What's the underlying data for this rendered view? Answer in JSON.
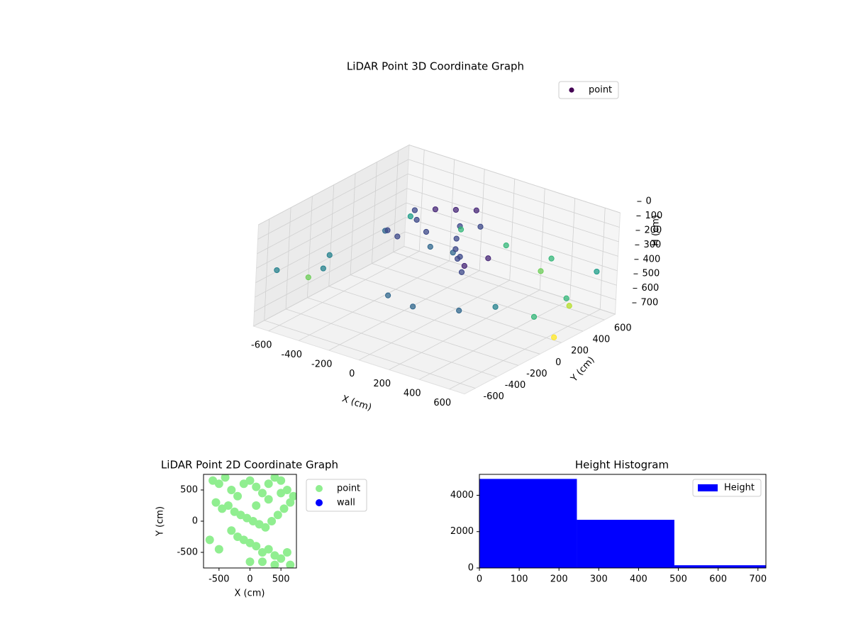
{
  "chart_data": [
    {
      "type": "scatter3d",
      "title": "LiDAR Point 3D Coordinate Graph",
      "xlabel": "X (cm)",
      "ylabel": "Y (cm)",
      "zlabel": "H (cm)",
      "xlim": [
        -700,
        700
      ],
      "ylim": [
        -700,
        700
      ],
      "zlim": [
        700,
        0
      ],
      "xticks": [
        -600,
        -400,
        -200,
        0,
        200,
        400,
        600
      ],
      "yticks": [
        -600,
        -400,
        -200,
        0,
        200,
        400,
        600
      ],
      "zticks": [
        0,
        100,
        200,
        300,
        400,
        500,
        600,
        700
      ],
      "colormap": "viridis",
      "grid": true,
      "legend": "upper right",
      "series": [
        {
          "name": "point",
          "color": "#440154",
          "x": [
            -300,
            -250,
            -200,
            -150,
            -100,
            0,
            50,
            100,
            150,
            200,
            250,
            300,
            -350,
            -300,
            -200,
            350,
            400,
            0,
            100,
            -50,
            -500,
            -400,
            100,
            500,
            600,
            -600,
            300,
            -600,
            -300,
            0,
            300,
            600,
            650,
            650,
            500,
            650,
            -700,
            200
          ],
          "y": [
            200,
            150,
            250,
            100,
            300,
            200,
            100,
            0,
            -50,
            -100,
            -150,
            -200,
            0,
            -50,
            -100,
            -250,
            -100,
            350,
            250,
            0,
            -300,
            -500,
            -600,
            -500,
            -300,
            -650,
            -650,
            600,
            650,
            650,
            650,
            650,
            300,
            0,
            550,
            200,
            -200,
            700
          ],
          "z": [
            120,
            150,
            100,
            180,
            90,
            130,
            160,
            200,
            140,
            170,
            120,
            190,
            200,
            160,
            150,
            110,
            100,
            80,
            120,
            210,
            300,
            280,
            260,
            270,
            290,
            300,
            250,
            420,
            430,
            440,
            430,
            420,
            450,
            460,
            650,
            680,
            560,
            570
          ]
        }
      ]
    },
    {
      "type": "scatter",
      "title": "LiDAR Point 2D Coordinate Graph",
      "xlabel": "X (cm)",
      "ylabel": "Y (cm)",
      "xlim": [
        -750,
        750
      ],
      "ylim": [
        -750,
        750
      ],
      "xticks": [
        -500,
        0,
        500
      ],
      "yticks": [
        -500,
        0,
        500
      ],
      "legend": "outside right",
      "series": [
        {
          "name": "point",
          "color": "#90ee90",
          "x": [
            -600,
            -500,
            -400,
            -300,
            -200,
            -100,
            0,
            100,
            200,
            300,
            400,
            500,
            600,
            700,
            -550,
            -450,
            -350,
            -250,
            -150,
            -50,
            50,
            150,
            250,
            350,
            450,
            550,
            650,
            -300,
            -200,
            -100,
            0,
            100,
            200,
            300,
            400,
            500,
            600,
            -500,
            0,
            200,
            400,
            650,
            -650,
            100,
            300,
            500
          ],
          "y": [
            650,
            600,
            700,
            500,
            400,
            600,
            650,
            550,
            450,
            600,
            700,
            650,
            500,
            400,
            300,
            200,
            250,
            150,
            100,
            50,
            0,
            -50,
            -100,
            0,
            100,
            200,
            300,
            -150,
            -250,
            -300,
            -350,
            -400,
            -500,
            -450,
            -550,
            -600,
            -500,
            -450,
            -650,
            -650,
            -700,
            -700,
            -300,
            250,
            350,
            450
          ]
        },
        {
          "name": "wall",
          "color": "#0000ff",
          "x": [],
          "y": []
        }
      ]
    },
    {
      "type": "histogram",
      "title": "Height Histogram",
      "bins": [
        0,
        245,
        490,
        735
      ],
      "values": [
        4900,
        2650,
        150
      ],
      "color": "#0000ff",
      "series_name": "Height",
      "legend": "upper right",
      "xlim": [
        0,
        720
      ],
      "ylim": [
        0,
        5150
      ],
      "xticks": [
        0,
        100,
        200,
        300,
        400,
        500,
        600,
        700
      ],
      "yticks": [
        0,
        2000,
        4000
      ]
    }
  ]
}
